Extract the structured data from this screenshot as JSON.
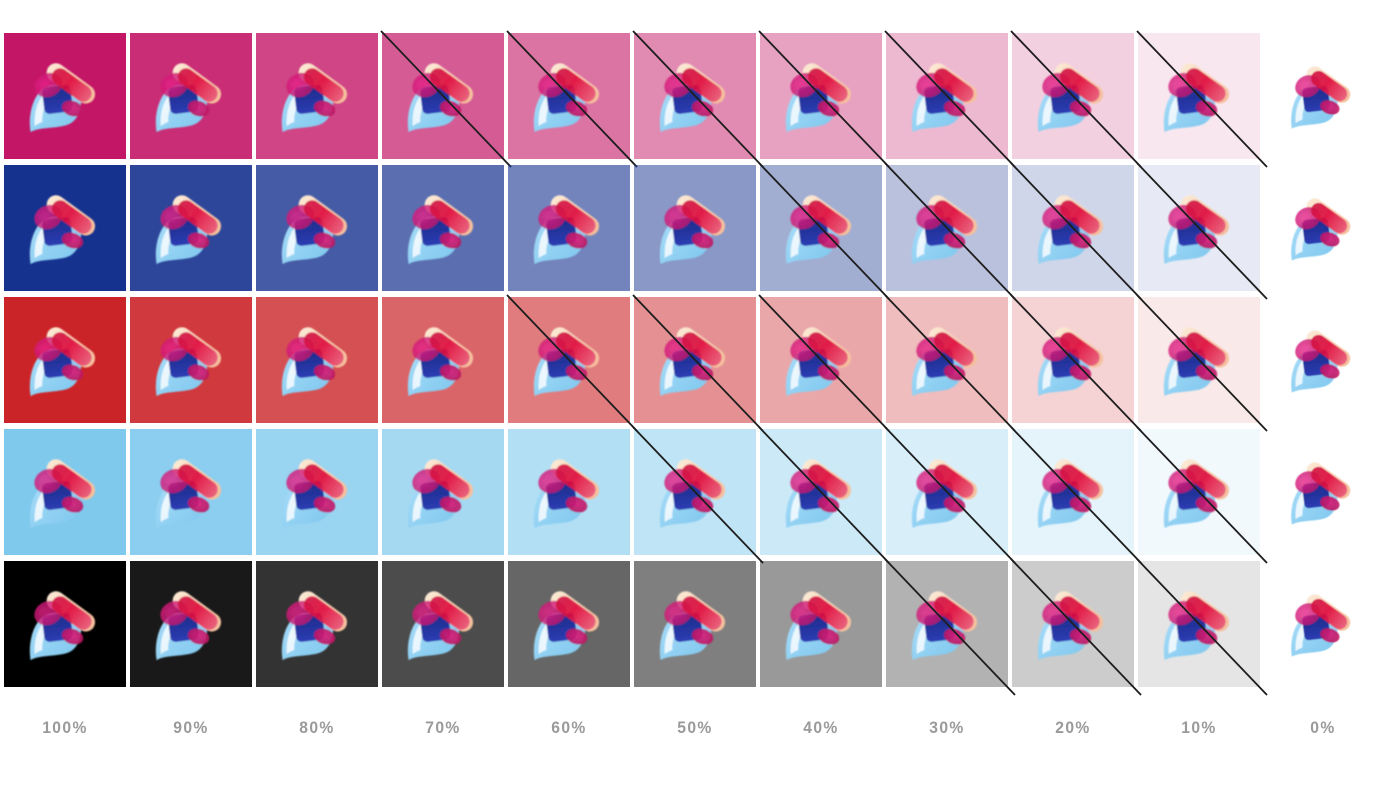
{
  "sheet": {
    "title": "logo-background-tint-matrix",
    "background": "#ffffff",
    "strike_color": "#1d1d1d",
    "label_color": "#9a9a9a"
  },
  "legend": {
    "labels": [
      "100%",
      "90%",
      "80%",
      "70%",
      "60%",
      "50%",
      "40%",
      "30%",
      "20%",
      "10%",
      "0%"
    ]
  },
  "opacities": [
    100,
    90,
    80,
    70,
    60,
    50,
    40,
    30,
    20,
    10
  ],
  "rows": [
    {
      "name": "magenta",
      "color": "#C31666",
      "crossed": [
        70,
        60,
        50,
        40,
        30,
        20,
        10
      ]
    },
    {
      "name": "navy-blue",
      "color": "#16328F",
      "crossed": [
        40,
        30,
        20,
        10
      ]
    },
    {
      "name": "red",
      "color": "#CB2428",
      "crossed": [
        60,
        50,
        40,
        30,
        20,
        10
      ]
    },
    {
      "name": "light-blue",
      "color": "#7FC9ED",
      "crossed": [
        50,
        40,
        30,
        20,
        10
      ]
    },
    {
      "name": "black",
      "color": "#000000",
      "crossed": [
        30,
        20,
        10
      ]
    }
  ],
  "logo": {
    "name": "abstract-petal-brandmark"
  }
}
